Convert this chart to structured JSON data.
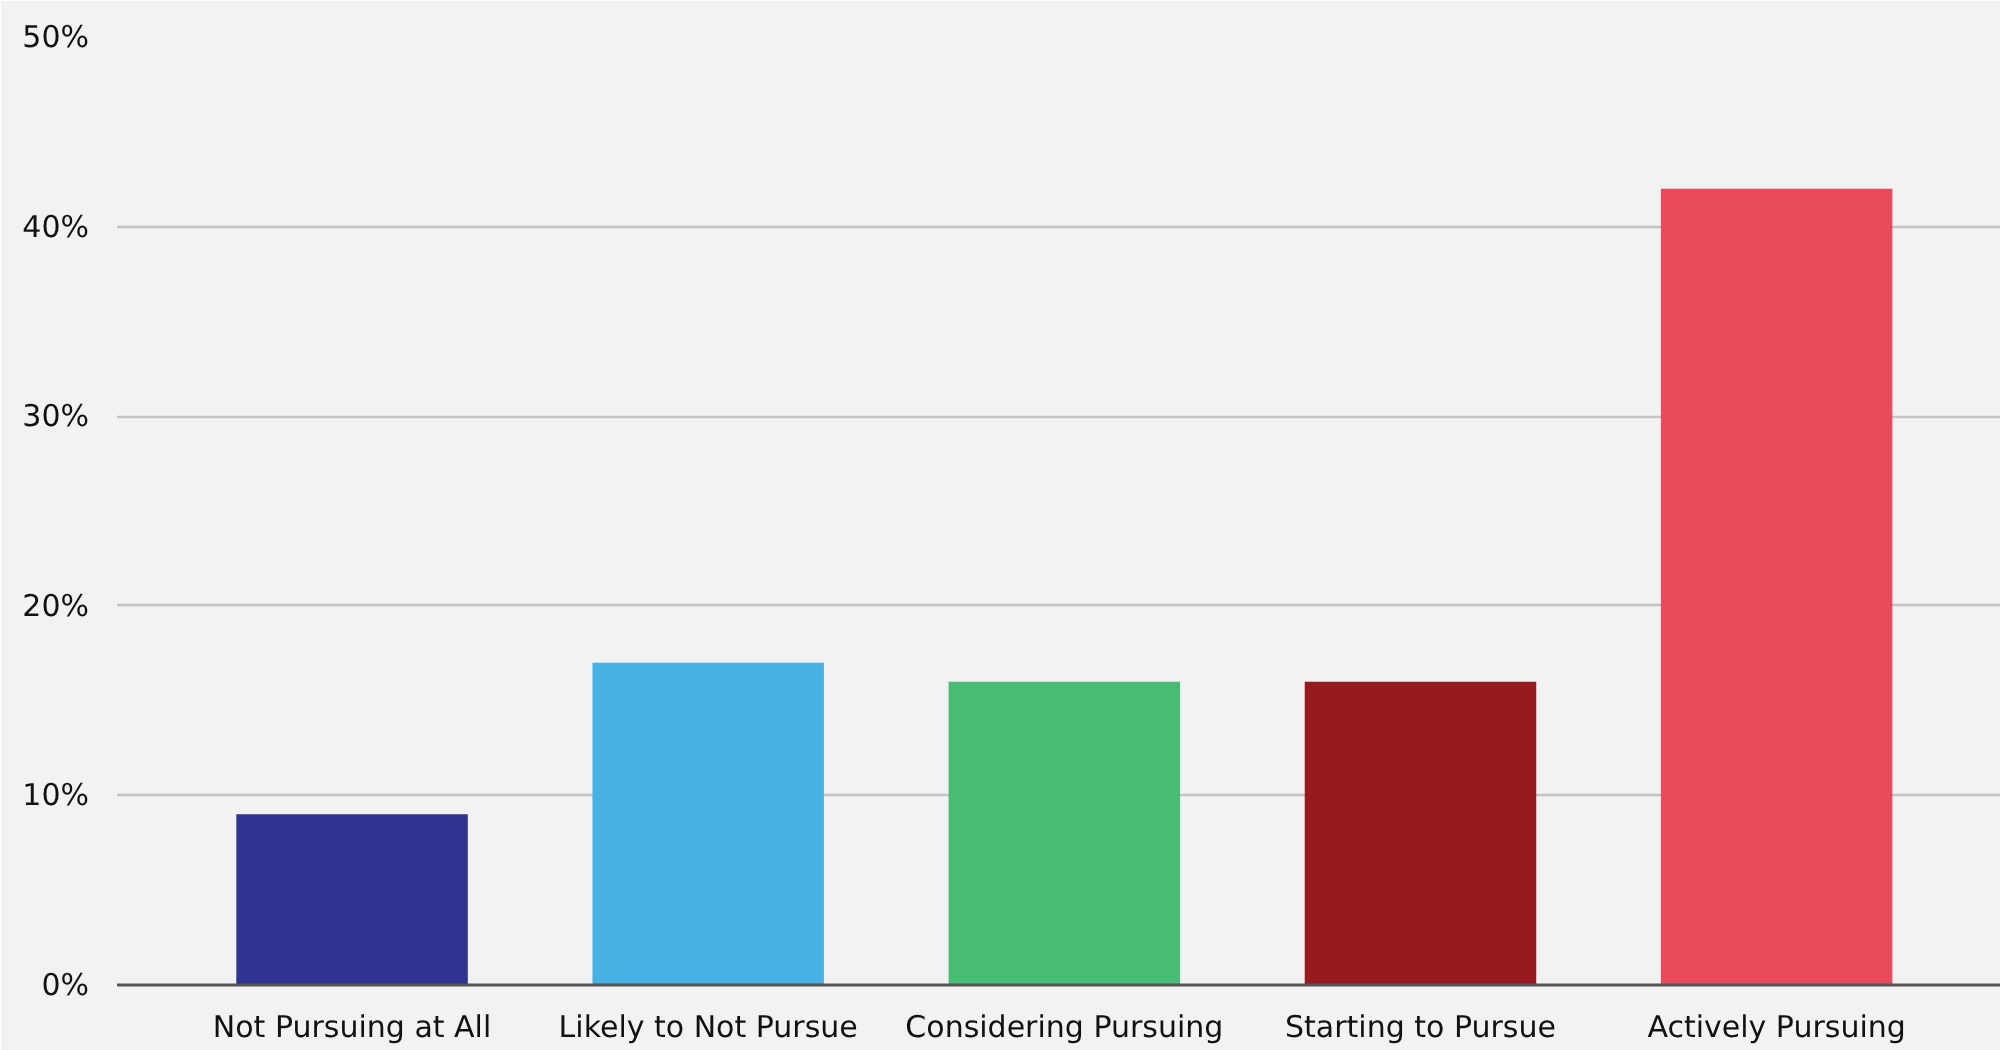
{
  "chart_data": {
    "type": "bar",
    "categories": [
      "Not Pursuing at All",
      "Likely to Not Pursue",
      "Considering Pursuing",
      "Starting to Pursue",
      "Actively Pursuing"
    ],
    "values": [
      9,
      17,
      16,
      16,
      42
    ],
    "colors": [
      "#2e3490",
      "#48b1e3",
      "#48bb74",
      "#971a1f",
      "#e94b5a"
    ],
    "ylim": [
      0,
      50
    ],
    "yticks": [
      {
        "value": 0,
        "label": "0%"
      },
      {
        "value": 10,
        "label": "10%"
      },
      {
        "value": 20,
        "label": "20%"
      },
      {
        "value": 30,
        "label": "30%"
      },
      {
        "value": 40,
        "label": "40%"
      },
      {
        "value": 50,
        "label": "50%"
      }
    ],
    "grid": "y"
  }
}
